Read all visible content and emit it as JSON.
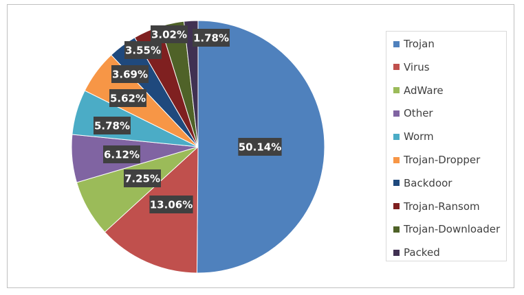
{
  "chart_data": {
    "type": "pie",
    "categories": [
      "Trojan",
      "Virus",
      "AdWare",
      "Other",
      "Worm",
      "Trojan-Dropper",
      "Backdoor",
      "Trojan-Ransom",
      "Trojan-Downloader",
      "Packed"
    ],
    "values": [
      50.14,
      13.06,
      7.25,
      6.12,
      5.78,
      5.62,
      3.69,
      3.55,
      3.02,
      1.78
    ],
    "data_labels": [
      "50.14%",
      "13.06%",
      "7.25%",
      "6.12%",
      "5.78%",
      "5.62%",
      "3.69%",
      "3.55%",
      "3.02%",
      "1.78%"
    ],
    "colors": [
      "#4f81bd",
      "#c0504d",
      "#9bbb59",
      "#8064a2",
      "#4bacc6",
      "#f79646",
      "#1f497d",
      "#7f2020",
      "#4f6228",
      "#403152"
    ],
    "legend_position": "right",
    "start_angle": "top",
    "direction": "clockwise"
  }
}
